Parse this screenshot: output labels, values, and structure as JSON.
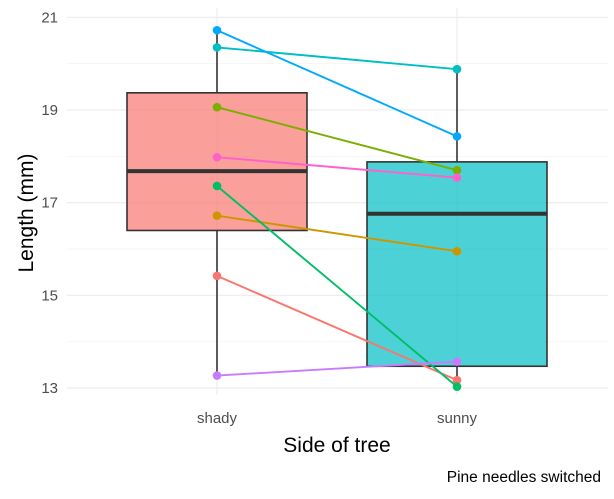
{
  "chart_data": {
    "type": "boxplot",
    "xlabel": "Side of tree",
    "ylabel": "Length (mm)",
    "caption": "Pine needles switched",
    "categories": [
      "shady",
      "sunny"
    ],
    "ylim": [
      12.85,
      21.2
    ],
    "yticks": [
      13,
      15,
      17,
      19,
      21
    ],
    "grid": true,
    "boxes": [
      {
        "category": "shady",
        "fill": "#F8766D",
        "q1": 16.4,
        "median": 17.68,
        "q3": 19.37,
        "whisker_low": 13.25,
        "whisker_high": 20.72
      },
      {
        "category": "sunny",
        "fill": "#00BFC4",
        "q1": 13.47,
        "median": 16.76,
        "q3": 17.88,
        "whisker_low": 13.02,
        "whisker_high": 19.88
      }
    ],
    "series": [
      {
        "color": "#F8766D",
        "values": [
          15.42,
          13.17
        ]
      },
      {
        "color": "#CD9600",
        "values": [
          16.72,
          15.95
        ]
      },
      {
        "color": "#7CAE00",
        "values": [
          19.06,
          17.7
        ]
      },
      {
        "color": "#00BE67",
        "values": [
          17.36,
          13.03
        ]
      },
      {
        "color": "#00BFC4",
        "values": [
          20.35,
          19.88
        ]
      },
      {
        "color": "#00A9FF",
        "values": [
          20.72,
          18.43
        ]
      },
      {
        "color": "#C77CFF",
        "values": [
          13.27,
          13.57
        ]
      },
      {
        "color": "#FF61CC",
        "values": [
          17.98,
          17.54
        ]
      }
    ]
  }
}
